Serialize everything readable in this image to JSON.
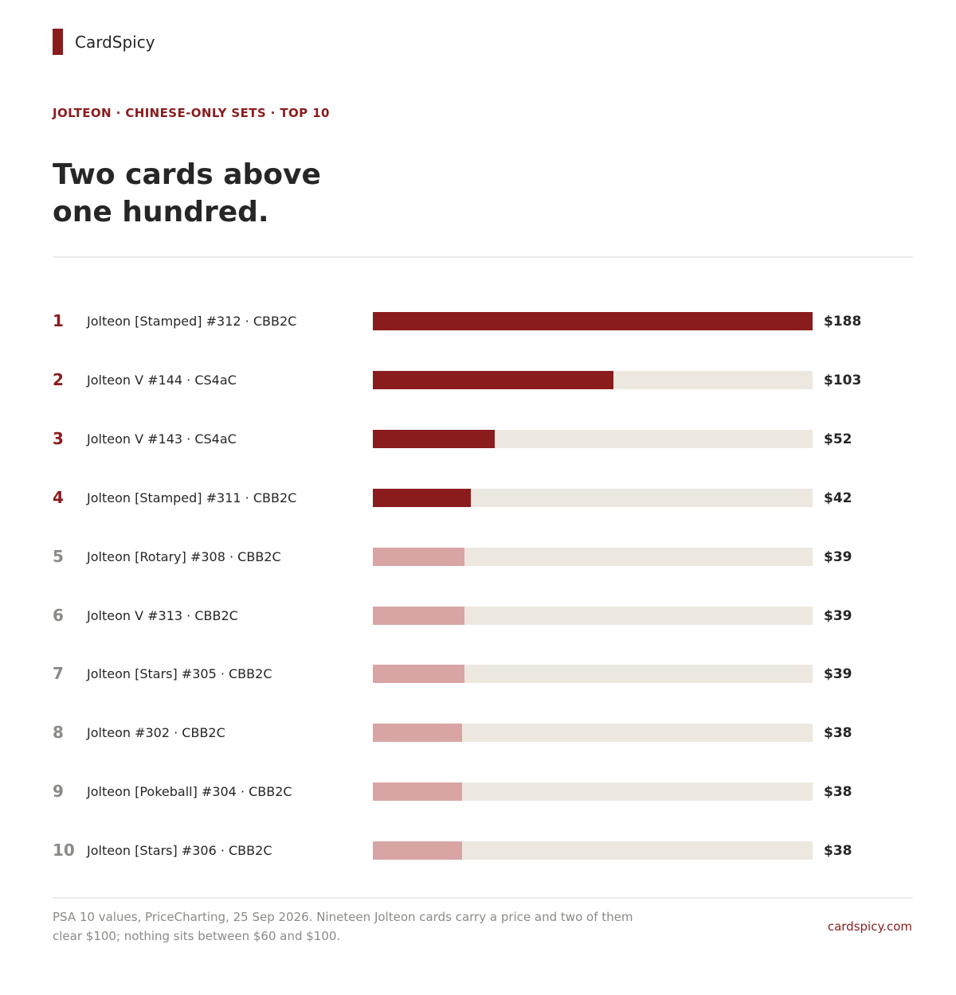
{
  "brand": {
    "name": "CardSpicy"
  },
  "eyebrow": "JOLTEON · CHINESE-ONLY SETS · TOP 10",
  "headline": {
    "line1": "Two cards above",
    "line2": "one hundred."
  },
  "chart_data": {
    "type": "bar",
    "orientation": "horizontal",
    "xlim": [
      0,
      188
    ],
    "currency": "$",
    "highlight_count": 4,
    "colors": {
      "highlight": "#8b1c1e",
      "muted": "#d8a5a4",
      "track": "#ece8e0",
      "rank_highlight": "#8b1c1e",
      "rank_muted": "#8a8a86"
    },
    "rows": [
      {
        "rank": "1",
        "label": "Jolteon [Stamped] #312 · CBB2C",
        "value": 188,
        "value_label": "$188"
      },
      {
        "rank": "2",
        "label": "Jolteon V #144 · CS4aC",
        "value": 103,
        "value_label": "$103"
      },
      {
        "rank": "3",
        "label": "Jolteon V #143 · CS4aC",
        "value": 52,
        "value_label": "$52"
      },
      {
        "rank": "4",
        "label": "Jolteon [Stamped] #311 · CBB2C",
        "value": 42,
        "value_label": "$42"
      },
      {
        "rank": "5",
        "label": "Jolteon [Rotary] #308 · CBB2C",
        "value": 39,
        "value_label": "$39"
      },
      {
        "rank": "6",
        "label": "Jolteon V #313 · CBB2C",
        "value": 39,
        "value_label": "$39"
      },
      {
        "rank": "7",
        "label": "Jolteon [Stars] #305 · CBB2C",
        "value": 39,
        "value_label": "$39"
      },
      {
        "rank": "8",
        "label": "Jolteon #302 · CBB2C",
        "value": 38,
        "value_label": "$38"
      },
      {
        "rank": "9",
        "label": "Jolteon [Pokeball] #304 · CBB2C",
        "value": 38,
        "value_label": "$38"
      },
      {
        "rank": "10",
        "label": "Jolteon [Stars] #306 · CBB2C",
        "value": 38,
        "value_label": "$38"
      }
    ]
  },
  "footer": {
    "note_line1": "PSA 10 values, PriceCharting, 25 Sep 2026. Nineteen Jolteon cards carry a price and two of them",
    "note_line2": "clear $100; nothing sits between $60 and $100.",
    "site": "cardspicy.com"
  }
}
